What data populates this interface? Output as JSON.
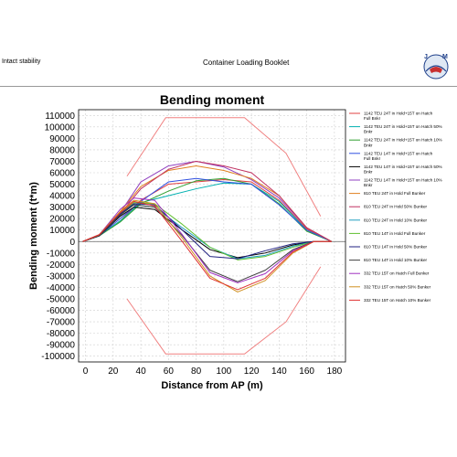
{
  "header": {
    "left": "Intact stability",
    "center": "Container Loading Booklet",
    "logo_letters": [
      "J",
      "M"
    ]
  },
  "chart_data": {
    "type": "line",
    "title": "Bending moment",
    "xlabel": "Distance from AP (m)",
    "ylabel": "Bending moment (t*m)",
    "xlim": [
      -5,
      188
    ],
    "ylim": [
      -105000,
      115000
    ],
    "xticks": [
      0,
      20,
      40,
      60,
      80,
      100,
      120,
      140,
      160,
      180
    ],
    "yticks": [
      110000,
      100000,
      90000,
      80000,
      70000,
      60000,
      50000,
      40000,
      30000,
      20000,
      10000,
      0,
      -10000,
      -20000,
      -30000,
      -40000,
      -50000,
      -60000,
      -70000,
      -80000,
      -90000,
      -100000
    ],
    "grid": true,
    "legend_position": "right",
    "limits": [
      {
        "name": "upper limit",
        "color": "#f08080",
        "x": [
          30,
          58,
          115,
          145,
          170
        ],
        "y": [
          57000,
          108000,
          108000,
          77000,
          22000
        ]
      },
      {
        "name": "lower limit",
        "color": "#f08080",
        "x": [
          30,
          58,
          115,
          145,
          170
        ],
        "y": [
          -50000,
          -98000,
          -98000,
          -70000,
          -22000
        ]
      }
    ],
    "series": [
      {
        "name": "1142 TEU 24T in Hold+15T on Hatch Full Bnkr",
        "color": "#e04040",
        "x": [
          -2,
          10,
          25,
          40,
          60,
          80,
          100,
          120,
          140,
          160,
          178
        ],
        "y": [
          0,
          5000,
          18000,
          36000,
          50000,
          52000,
          54000,
          52000,
          36000,
          11000,
          0
        ]
      },
      {
        "name": "1142 TEU 24T in Hold+15T on Hatch 50% Bnkr",
        "color": "#00b0b0",
        "x": [
          -2,
          10,
          25,
          40,
          60,
          80,
          100,
          120,
          140,
          160,
          178
        ],
        "y": [
          0,
          5000,
          18000,
          34000,
          40000,
          46000,
          51000,
          50000,
          35000,
          10000,
          0
        ]
      },
      {
        "name": "1142 TEU 24T in Hold+15T on Hatch 10% Bnkr",
        "color": "#30a030",
        "x": [
          -2,
          10,
          25,
          40,
          60,
          80,
          100,
          120,
          140,
          160,
          178
        ],
        "y": [
          0,
          5000,
          17000,
          33000,
          44000,
          53000,
          55000,
          50000,
          33000,
          9000,
          0
        ]
      },
      {
        "name": "1142 TEU 14T in Hold+15T on Hatch Full Bnkr",
        "color": "#3050e0",
        "x": [
          -2,
          10,
          25,
          40,
          60,
          80,
          100,
          120,
          140,
          160,
          178
        ],
        "y": [
          0,
          5000,
          20000,
          35000,
          52000,
          55000,
          52000,
          50000,
          32000,
          10000,
          0
        ]
      },
      {
        "name": "1142 TEU 14T in Hold+15T on Hatch 50% Bnkr",
        "color": "#000000",
        "x": [
          -2,
          10,
          25,
          35,
          50,
          70,
          90,
          110,
          130,
          150,
          165,
          178
        ],
        "y": [
          0,
          5000,
          22000,
          30000,
          28000,
          10000,
          -7000,
          -14000,
          -10000,
          -3000,
          0,
          0
        ]
      },
      {
        "name": "1142 TEU 14T in Hold+15T on Hatch 10% Bnkr",
        "color": "#9040c0",
        "x": [
          -2,
          10,
          25,
          40,
          60,
          80,
          100,
          120,
          140,
          160,
          178
        ],
        "y": [
          0,
          6000,
          25000,
          52000,
          66000,
          70000,
          65000,
          54000,
          38000,
          12000,
          0
        ]
      },
      {
        "name": "810 TEU 24T in Hold Full Bunker",
        "color": "#e08020",
        "x": [
          -2,
          10,
          25,
          40,
          60,
          80,
          100,
          120,
          140,
          160,
          178
        ],
        "y": [
          0,
          6000,
          26000,
          48000,
          62000,
          66000,
          62000,
          55000,
          40000,
          12000,
          0
        ]
      },
      {
        "name": "810 TEU 24T in Hold 50% Bunker",
        "color": "#c03060",
        "x": [
          -2,
          10,
          25,
          40,
          60,
          80,
          100,
          120,
          140,
          160,
          178
        ],
        "y": [
          0,
          6000,
          24000,
          46000,
          63000,
          70000,
          66000,
          60000,
          40000,
          12000,
          0
        ]
      },
      {
        "name": "810 TEU 24T in Hold 10% Bunker",
        "color": "#20a0c0",
        "x": [
          -2,
          10,
          25,
          35,
          50,
          70,
          90,
          110,
          130,
          150,
          165,
          178
        ],
        "y": [
          0,
          5000,
          24000,
          32000,
          30000,
          12000,
          -5000,
          -15000,
          -12000,
          -4000,
          0,
          0
        ]
      },
      {
        "name": "810 TEU 14T in Hold Full Bunker",
        "color": "#60c030",
        "x": [
          -2,
          10,
          25,
          35,
          50,
          70,
          90,
          110,
          130,
          150,
          165,
          178
        ],
        "y": [
          0,
          5000,
          24000,
          34000,
          33000,
          15000,
          -5000,
          -16000,
          -13000,
          -5000,
          0,
          0
        ]
      },
      {
        "name": "810 TEU 14T in Hold 50% Bunker",
        "color": "#202080",
        "x": [
          -2,
          10,
          25,
          35,
          50,
          70,
          90,
          110,
          130,
          150,
          165,
          178
        ],
        "y": [
          0,
          5000,
          24000,
          33000,
          32000,
          10000,
          -13000,
          -15000,
          -8000,
          -2000,
          0,
          0
        ]
      },
      {
        "name": "810 TEU 14T in Hold 10% Bunker",
        "color": "#404040",
        "x": [
          -2,
          10,
          25,
          35,
          50,
          70,
          90,
          110,
          130,
          150,
          165,
          178
        ],
        "y": [
          0,
          5000,
          23000,
          32000,
          30000,
          5000,
          -25000,
          -35000,
          -25000,
          -7000,
          0,
          0
        ]
      },
      {
        "name": "332 TEU 15T on Hatch Full Bunker",
        "color": "#a030c0",
        "x": [
          -2,
          10,
          25,
          35,
          50,
          70,
          90,
          110,
          130,
          150,
          165,
          178
        ],
        "y": [
          0,
          6000,
          28000,
          38000,
          36000,
          6000,
          -27000,
          -36000,
          -28000,
          -8000,
          0,
          0
        ]
      },
      {
        "name": "332 TEU 15T on Hatch 50% Bunker",
        "color": "#d09020",
        "x": [
          -2,
          10,
          25,
          35,
          50,
          70,
          90,
          110,
          130,
          150,
          165,
          178
        ],
        "y": [
          0,
          6000,
          26000,
          36000,
          33000,
          3000,
          -30000,
          -44000,
          -34000,
          -10000,
          0,
          0
        ]
      },
      {
        "name": "332 TEU 15T on Hatch 10% Bunker",
        "color": "#e03030",
        "x": [
          -2,
          10,
          25,
          35,
          50,
          70,
          90,
          110,
          130,
          150,
          165,
          178
        ],
        "y": [
          0,
          6000,
          25000,
          35000,
          31000,
          0,
          -32000,
          -42000,
          -32000,
          -9000,
          0,
          0
        ]
      }
    ]
  }
}
